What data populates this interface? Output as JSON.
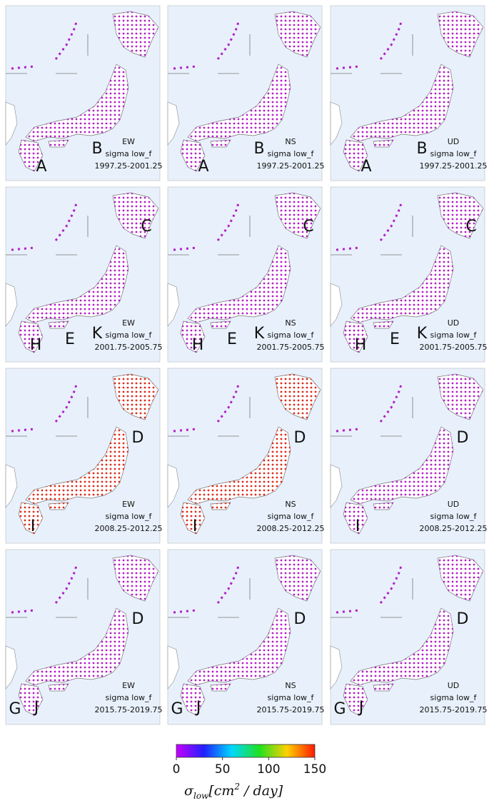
{
  "rows": [
    {
      "letters": [
        "A",
        "B"
      ],
      "panels": [
        {
          "component": "EW",
          "method": "sigma low_f",
          "period": "1997.25-2001.25"
        },
        {
          "component": "NS",
          "method": "sigma low_f",
          "period": "1997.25-2001.25"
        },
        {
          "component": "UD",
          "method": "sigma low_f",
          "period": "1997.25-2001.25"
        }
      ]
    },
    {
      "letters": [
        "C",
        "H",
        "E",
        "K"
      ],
      "panels": [
        {
          "component": "EW",
          "method": "sigma low_f",
          "period": "2001.75-2005.75"
        },
        {
          "component": "NS",
          "method": "sigma low_f",
          "period": "2001.75-2005.75"
        },
        {
          "component": "UD",
          "method": "sigma low_f",
          "period": "2001.75-2005.75"
        }
      ]
    },
    {
      "letters": [
        "D",
        "I"
      ],
      "panels": [
        {
          "component": "EW",
          "method": "sigma low_f",
          "period": "2008.25-2012.25"
        },
        {
          "component": "NS",
          "method": "sigma low_f",
          "period": "2008.25-2012.25"
        },
        {
          "component": "UD",
          "method": "sigma low_f",
          "period": "2008.25-2012.25"
        }
      ]
    },
    {
      "letters": [
        "D",
        "G",
        "J"
      ],
      "panels": [
        {
          "component": "EW",
          "method": "sigma low_f",
          "period": "2015.75-2019.75"
        },
        {
          "component": "NS",
          "method": "sigma low_f",
          "period": "2015.75-2019.75"
        },
        {
          "component": "UD",
          "method": "sigma low_f",
          "period": "2015.75-2019.75"
        }
      ]
    }
  ],
  "colorbar": {
    "lim": [
      0,
      150
    ],
    "ticks": [
      0,
      50,
      100,
      150
    ],
    "label": {
      "symbol": "σ",
      "subscript": "low",
      "unit": "[cm",
      "power": "2",
      "rest": " / day]"
    }
  }
}
